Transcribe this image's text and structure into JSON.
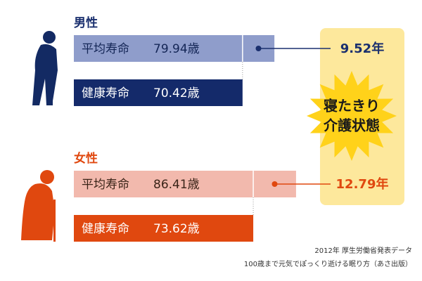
{
  "chart_data": {
    "type": "bar",
    "orientation": "horizontal",
    "xlim": [
      20,
      90
    ],
    "groups": [
      {
        "name": "男性",
        "color": "#1a2f6e",
        "gap": 9.52,
        "gap_label": "9.52年",
        "series": [
          {
            "name": "平均寿命",
            "value": 79.94,
            "value_label": "79.94歳",
            "color": "#8f9dcb",
            "text_color": "#142656"
          },
          {
            "name": "健康寿命",
            "value": 70.42,
            "value_label": "70.42歳",
            "color": "#142a6a",
            "text_color": "#ffffff"
          }
        ]
      },
      {
        "name": "女性",
        "color": "#e0480f",
        "gap": 12.79,
        "gap_label": "12.79年",
        "series": [
          {
            "name": "平均寿命",
            "value": 86.41,
            "value_label": "86.41歳",
            "color": "#f2b9ad",
            "text_color": "#3a2418"
          },
          {
            "name": "健康寿命",
            "value": 73.62,
            "value_label": "73.62歳",
            "color": "#e0480f",
            "text_color": "#ffffff"
          }
        ]
      }
    ],
    "callout": [
      "寝たきり",
      "介護状態"
    ],
    "notes": [
      "2012年 厚生労働省発表データ",
      "100歳まで元気でぽっくり逝ける眠り方（あさ出版）"
    ]
  }
}
